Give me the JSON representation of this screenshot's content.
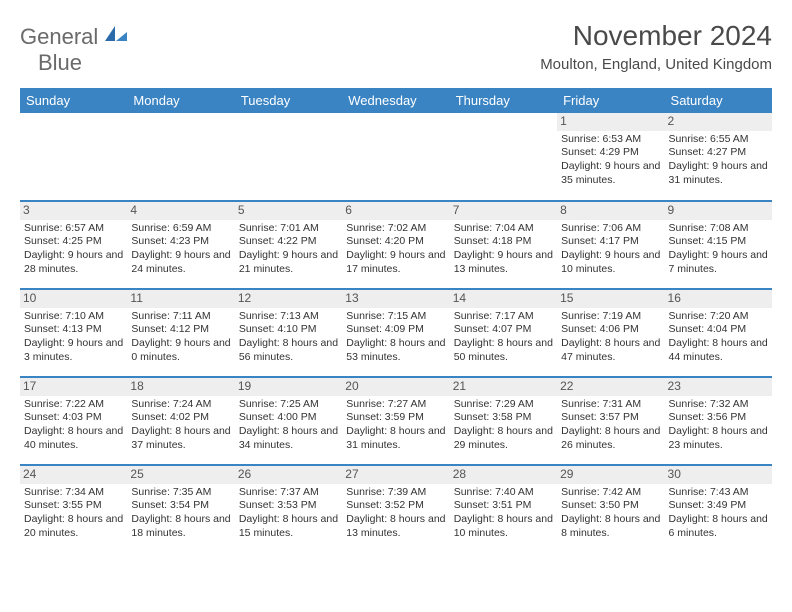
{
  "logo": {
    "line1": "General",
    "line2": "Blue"
  },
  "title": "November 2024",
  "location": "Moulton, England, United Kingdom",
  "colors": {
    "header_bg": "#3a84c4",
    "header_fg": "#ffffff",
    "daynum_bg": "#eeeeee",
    "border": "#3a84c4",
    "text": "#333333",
    "logo_gray": "#6a6a6a",
    "logo_blue": "#3a84c4"
  },
  "weekdays": [
    "Sunday",
    "Monday",
    "Tuesday",
    "Wednesday",
    "Thursday",
    "Friday",
    "Saturday"
  ],
  "weeks": [
    [
      null,
      null,
      null,
      null,
      null,
      {
        "n": "1",
        "sunrise": "6:53 AM",
        "sunset": "4:29 PM",
        "daylight": "9 hours and 35 minutes."
      },
      {
        "n": "2",
        "sunrise": "6:55 AM",
        "sunset": "4:27 PM",
        "daylight": "9 hours and 31 minutes."
      }
    ],
    [
      {
        "n": "3",
        "sunrise": "6:57 AM",
        "sunset": "4:25 PM",
        "daylight": "9 hours and 28 minutes."
      },
      {
        "n": "4",
        "sunrise": "6:59 AM",
        "sunset": "4:23 PM",
        "daylight": "9 hours and 24 minutes."
      },
      {
        "n": "5",
        "sunrise": "7:01 AM",
        "sunset": "4:22 PM",
        "daylight": "9 hours and 21 minutes."
      },
      {
        "n": "6",
        "sunrise": "7:02 AM",
        "sunset": "4:20 PM",
        "daylight": "9 hours and 17 minutes."
      },
      {
        "n": "7",
        "sunrise": "7:04 AM",
        "sunset": "4:18 PM",
        "daylight": "9 hours and 13 minutes."
      },
      {
        "n": "8",
        "sunrise": "7:06 AM",
        "sunset": "4:17 PM",
        "daylight": "9 hours and 10 minutes."
      },
      {
        "n": "9",
        "sunrise": "7:08 AM",
        "sunset": "4:15 PM",
        "daylight": "9 hours and 7 minutes."
      }
    ],
    [
      {
        "n": "10",
        "sunrise": "7:10 AM",
        "sunset": "4:13 PM",
        "daylight": "9 hours and 3 minutes."
      },
      {
        "n": "11",
        "sunrise": "7:11 AM",
        "sunset": "4:12 PM",
        "daylight": "9 hours and 0 minutes."
      },
      {
        "n": "12",
        "sunrise": "7:13 AM",
        "sunset": "4:10 PM",
        "daylight": "8 hours and 56 minutes."
      },
      {
        "n": "13",
        "sunrise": "7:15 AM",
        "sunset": "4:09 PM",
        "daylight": "8 hours and 53 minutes."
      },
      {
        "n": "14",
        "sunrise": "7:17 AM",
        "sunset": "4:07 PM",
        "daylight": "8 hours and 50 minutes."
      },
      {
        "n": "15",
        "sunrise": "7:19 AM",
        "sunset": "4:06 PM",
        "daylight": "8 hours and 47 minutes."
      },
      {
        "n": "16",
        "sunrise": "7:20 AM",
        "sunset": "4:04 PM",
        "daylight": "8 hours and 44 minutes."
      }
    ],
    [
      {
        "n": "17",
        "sunrise": "7:22 AM",
        "sunset": "4:03 PM",
        "daylight": "8 hours and 40 minutes."
      },
      {
        "n": "18",
        "sunrise": "7:24 AM",
        "sunset": "4:02 PM",
        "daylight": "8 hours and 37 minutes."
      },
      {
        "n": "19",
        "sunrise": "7:25 AM",
        "sunset": "4:00 PM",
        "daylight": "8 hours and 34 minutes."
      },
      {
        "n": "20",
        "sunrise": "7:27 AM",
        "sunset": "3:59 PM",
        "daylight": "8 hours and 31 minutes."
      },
      {
        "n": "21",
        "sunrise": "7:29 AM",
        "sunset": "3:58 PM",
        "daylight": "8 hours and 29 minutes."
      },
      {
        "n": "22",
        "sunrise": "7:31 AM",
        "sunset": "3:57 PM",
        "daylight": "8 hours and 26 minutes."
      },
      {
        "n": "23",
        "sunrise": "7:32 AM",
        "sunset": "3:56 PM",
        "daylight": "8 hours and 23 minutes."
      }
    ],
    [
      {
        "n": "24",
        "sunrise": "7:34 AM",
        "sunset": "3:55 PM",
        "daylight": "8 hours and 20 minutes."
      },
      {
        "n": "25",
        "sunrise": "7:35 AM",
        "sunset": "3:54 PM",
        "daylight": "8 hours and 18 minutes."
      },
      {
        "n": "26",
        "sunrise": "7:37 AM",
        "sunset": "3:53 PM",
        "daylight": "8 hours and 15 minutes."
      },
      {
        "n": "27",
        "sunrise": "7:39 AM",
        "sunset": "3:52 PM",
        "daylight": "8 hours and 13 minutes."
      },
      {
        "n": "28",
        "sunrise": "7:40 AM",
        "sunset": "3:51 PM",
        "daylight": "8 hours and 10 minutes."
      },
      {
        "n": "29",
        "sunrise": "7:42 AM",
        "sunset": "3:50 PM",
        "daylight": "8 hours and 8 minutes."
      },
      {
        "n": "30",
        "sunrise": "7:43 AM",
        "sunset": "3:49 PM",
        "daylight": "8 hours and 6 minutes."
      }
    ]
  ],
  "labels": {
    "sunrise": "Sunrise:",
    "sunset": "Sunset:",
    "daylight": "Daylight:"
  }
}
